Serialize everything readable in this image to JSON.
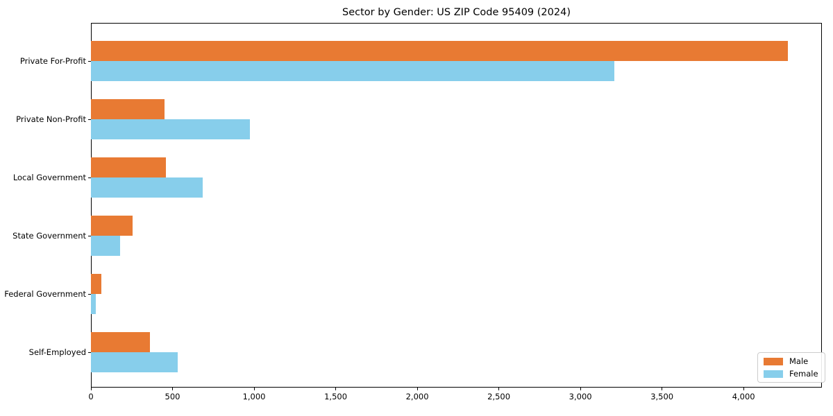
{
  "chart_data": {
    "type": "bar",
    "orientation": "horizontal",
    "title": "Sector by Gender: US ZIP Code 95409 (2024)",
    "categories": [
      "Private For-Profit",
      "Private Non-Profit",
      "Local Government",
      "State Government",
      "Federal Government",
      "Self-Employed"
    ],
    "series": [
      {
        "name": "Male",
        "color": "#e87a33",
        "values": [
          4270,
          450,
          460,
          255,
          65,
          360
        ]
      },
      {
        "name": "Female",
        "color": "#87ceeb",
        "values": [
          3210,
          975,
          685,
          180,
          30,
          530
        ]
      }
    ],
    "xlabel": "",
    "ylabel": "",
    "xlim": [
      0,
      4480
    ],
    "xticks": [
      0,
      500,
      1000,
      1500,
      2000,
      2500,
      3000,
      3500,
      4000
    ],
    "xtick_labels": [
      "0",
      "500",
      "1,000",
      "1,500",
      "2,000",
      "2,500",
      "3,000",
      "3,500",
      "4,000"
    ],
    "grid": false,
    "background_color": "#ffffff",
    "legend": {
      "position": "lower right",
      "entries": [
        "Male",
        "Female"
      ]
    }
  }
}
